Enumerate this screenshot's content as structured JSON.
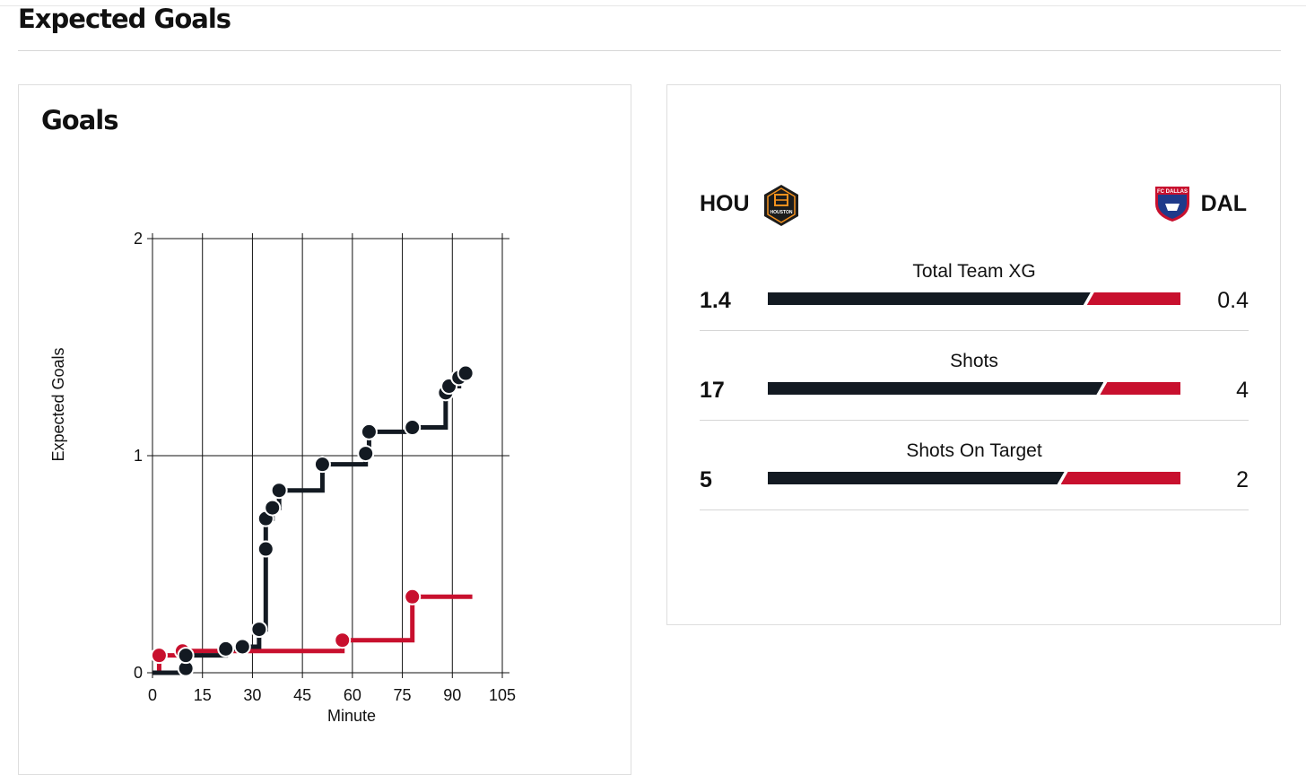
{
  "section_title": "Expected Goals",
  "card_title": "Goals",
  "colors": {
    "home": "#131a22",
    "away": "#c8102e"
  },
  "teams": {
    "home": {
      "code": "HOU",
      "crest_icon": "houston-dynamo-crest-icon",
      "crest_text": "HOUSTON"
    },
    "away": {
      "code": "DAL",
      "crest_icon": "fc-dallas-crest-icon",
      "crest_text": "FC DALLAS"
    }
  },
  "stats": [
    {
      "label": "Total Team XG",
      "home": "1.4",
      "away": "0.4",
      "home_value": 1.4,
      "away_value": 0.4
    },
    {
      "label": "Shots",
      "home": "17",
      "away": "4",
      "home_value": 17,
      "away_value": 4
    },
    {
      "label": "Shots On Target",
      "home": "5",
      "away": "2",
      "home_value": 5,
      "away_value": 2
    }
  ],
  "chart_data": {
    "type": "line",
    "step": true,
    "title": "",
    "xlabel": "Minute",
    "ylabel": "Expected Goals",
    "xlim": [
      0,
      105
    ],
    "ylim": [
      0,
      2
    ],
    "x_ticks": [
      0,
      15,
      30,
      45,
      60,
      75,
      90,
      105
    ],
    "y_ticks": [
      0,
      1,
      2
    ],
    "grid": true,
    "series": [
      {
        "team": "HOU",
        "color": "#131a22",
        "start": [
          0,
          0
        ],
        "end_minute": 96,
        "shots": [
          {
            "minute": 10,
            "xg": 0.02
          },
          {
            "minute": 10,
            "xg": 0.08
          },
          {
            "minute": 22,
            "xg": 0.11
          },
          {
            "minute": 27,
            "xg": 0.12
          },
          {
            "minute": 32,
            "xg": 0.2
          },
          {
            "minute": 34,
            "xg": 0.57
          },
          {
            "minute": 34,
            "xg": 0.71
          },
          {
            "minute": 36,
            "xg": 0.76
          },
          {
            "minute": 38,
            "xg": 0.84
          },
          {
            "minute": 51,
            "xg": 0.96
          },
          {
            "minute": 64,
            "xg": 1.01
          },
          {
            "minute": 65,
            "xg": 1.11
          },
          {
            "minute": 78,
            "xg": 1.13
          },
          {
            "minute": 88,
            "xg": 1.29
          },
          {
            "minute": 89,
            "xg": 1.32
          },
          {
            "minute": 92,
            "xg": 1.36
          },
          {
            "minute": 94,
            "xg": 1.38
          }
        ]
      },
      {
        "team": "DAL",
        "color": "#c8102e",
        "start": [
          0,
          0
        ],
        "end_minute": 96,
        "shots": [
          {
            "minute": 2,
            "xg": 0.08
          },
          {
            "minute": 9,
            "xg": 0.1
          },
          {
            "minute": 57,
            "xg": 0.15
          },
          {
            "minute": 78,
            "xg": 0.35
          }
        ]
      }
    ]
  }
}
